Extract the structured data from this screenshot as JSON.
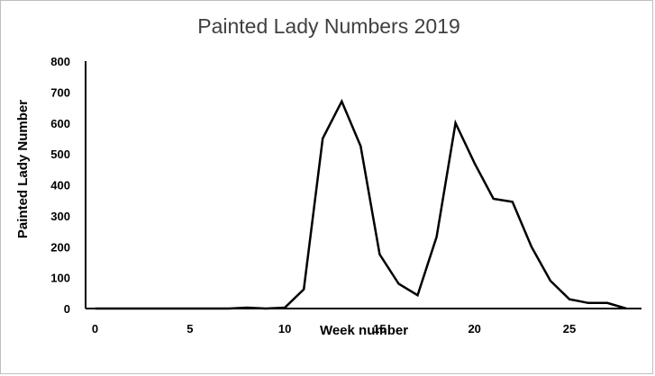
{
  "chart_data": {
    "type": "line",
    "title": "Painted Lady Numbers 2019",
    "xlabel": "Week number",
    "ylabel": "Painted Lady Number",
    "xlim": [
      -0.5,
      28.8
    ],
    "ylim": [
      0,
      800
    ],
    "x_ticks": [
      0,
      5,
      10,
      15,
      20,
      25
    ],
    "y_ticks": [
      0,
      100,
      200,
      300,
      400,
      500,
      600,
      700,
      800
    ],
    "grid": false,
    "legend": "none",
    "series": [
      {
        "color": "#000000",
        "x": [
          0,
          1,
          2,
          3,
          4,
          5,
          6,
          7,
          8,
          9,
          10,
          11,
          12,
          13,
          14,
          15,
          16,
          17,
          18,
          19,
          20,
          21,
          22,
          23,
          24,
          25,
          26,
          27,
          28
        ],
        "y": [
          0,
          0,
          0,
          0,
          0,
          0,
          0,
          0,
          3,
          0,
          3,
          62,
          550,
          670,
          525,
          175,
          80,
          43,
          232,
          600,
          470,
          355,
          345,
          200,
          90,
          30,
          18,
          18,
          0
        ]
      }
    ]
  }
}
